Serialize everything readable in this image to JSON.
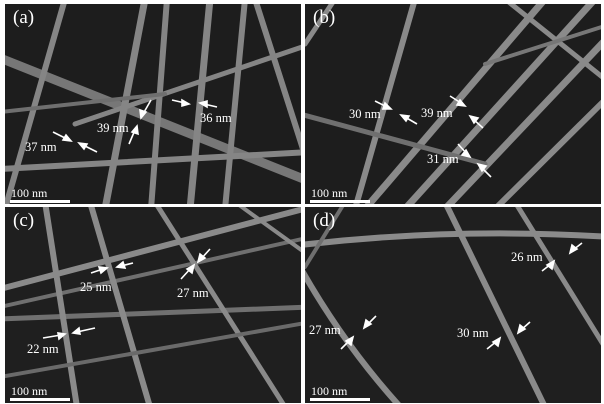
{
  "figure": {
    "panels": [
      {
        "label": "(a)",
        "scale": "100 nm",
        "widths": [
          "37 nm",
          "39 nm",
          "36 nm"
        ]
      },
      {
        "label": "(b)",
        "scale": "100 nm",
        "widths": [
          "30 nm",
          "39 nm",
          "31 nm"
        ]
      },
      {
        "label": "(c)",
        "scale": "100 nm",
        "widths": [
          "25 nm",
          "27 nm",
          "22 nm"
        ]
      },
      {
        "label": "(d)",
        "scale": "100 nm",
        "widths": [
          "26 nm",
          "27 nm",
          "30 nm"
        ]
      }
    ],
    "colors": {
      "background": "#1c1c1c",
      "wire": "#8a8a8a",
      "text": "#ffffff",
      "separator": "#ffffff"
    }
  }
}
